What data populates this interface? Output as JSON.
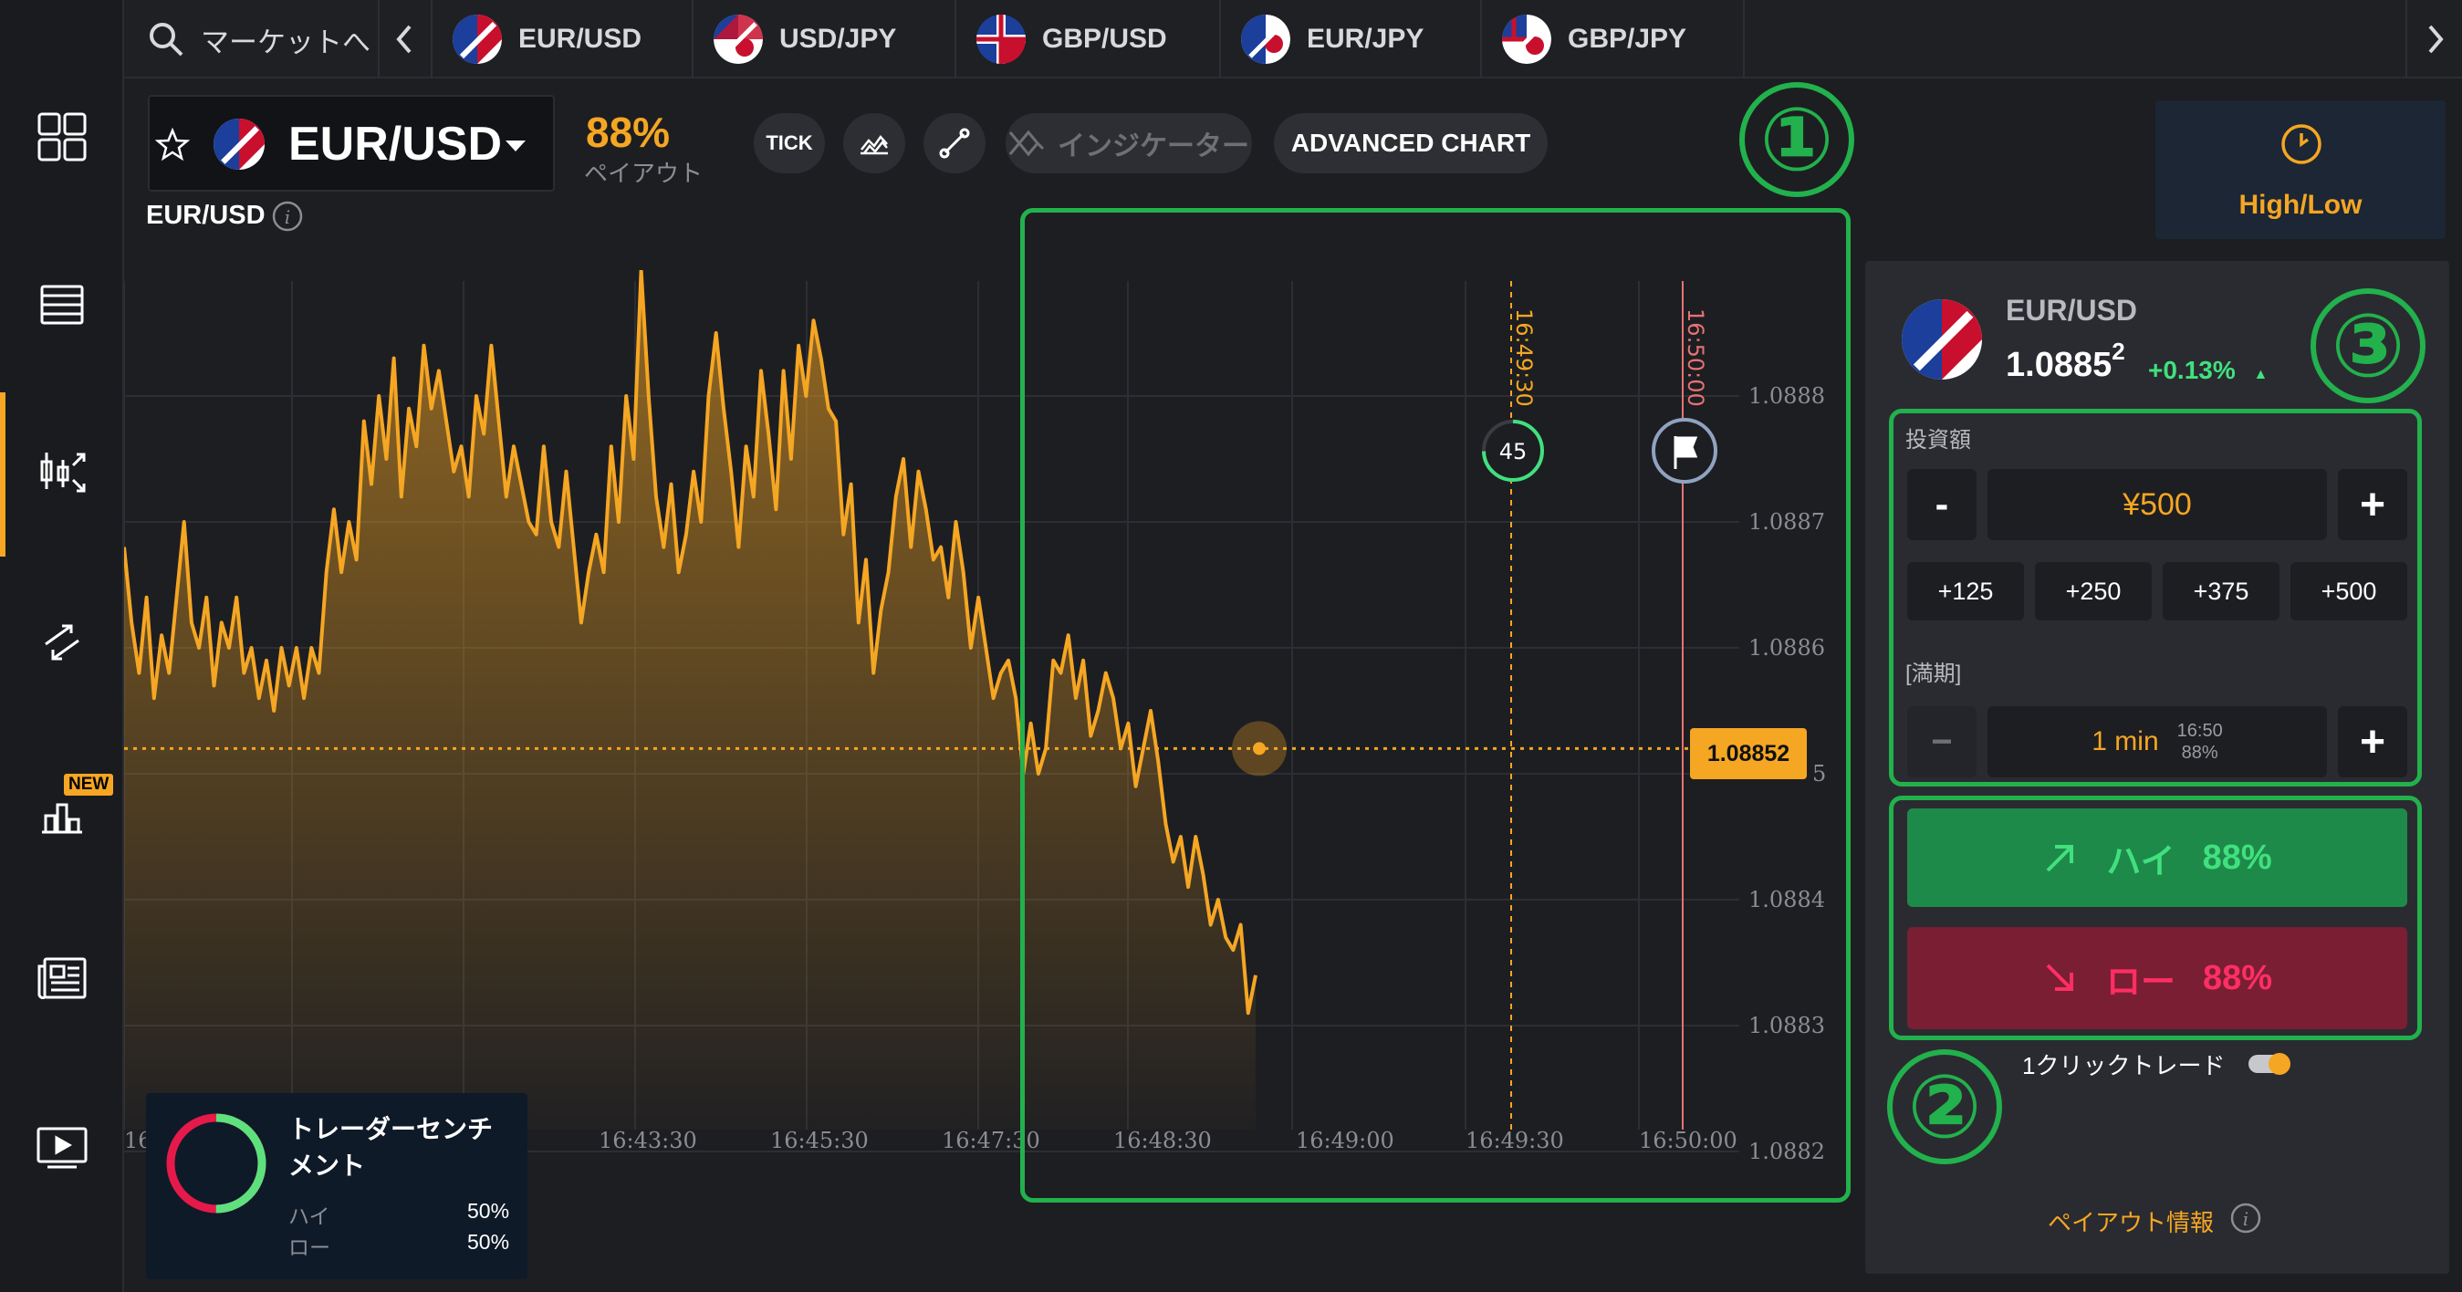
{
  "sidebar": {
    "items": [
      {
        "name": "dashboard-icon"
      },
      {
        "name": "list-icon"
      },
      {
        "name": "trade-chart-icon"
      },
      {
        "name": "transfer-icon"
      },
      {
        "name": "tournament-icon",
        "badge": "NEW"
      },
      {
        "name": "news-icon"
      },
      {
        "name": "video-icon"
      }
    ]
  },
  "topbar": {
    "search_label": "マーケットへ",
    "tabs": [
      "EUR/USD",
      "USD/JPY",
      "GBP/USD",
      "EUR/JPY",
      "GBP/JPY"
    ]
  },
  "toolbar": {
    "asset": "EUR/USD",
    "payout_pct": "88%",
    "payout_label": "ペイアウト",
    "tick_label": "TICK",
    "indicator_label": "インジケーター",
    "advanced_label": "ADVANCED CHART",
    "sub_title": "EUR/USD"
  },
  "mode": {
    "label": "High/Low"
  },
  "annotations": {
    "one": "①",
    "two": "②",
    "three": "③"
  },
  "chart_data": {
    "type": "area",
    "y_ticks": [
      "1.0888",
      "1.0887",
      "1.0886",
      "1.0885",
      "1.0884",
      "1.0883",
      "1.0882"
    ],
    "x_ticks": [
      "16",
      "16:43:30",
      "16:45:30",
      "16:47:30",
      "16:48:30",
      "16:49:00",
      "16:49:30",
      "16:50:00"
    ],
    "current_price": "1.08852",
    "entry_line": "16:49:30",
    "expiry_line": "16:50:00",
    "timer": "45",
    "series": [
      1.08868,
      1.08862,
      1.08858,
      1.08864,
      1.08856,
      1.08861,
      1.08858,
      1.08864,
      1.0887,
      1.08862,
      1.0886,
      1.08864,
      1.08857,
      1.08862,
      1.0886,
      1.08864,
      1.08858,
      1.0886,
      1.08856,
      1.08859,
      1.08855,
      1.0886,
      1.08857,
      1.0886,
      1.08856,
      1.0886,
      1.08858,
      1.08866,
      1.08871,
      1.08866,
      1.0887,
      1.08867,
      1.08878,
      1.08873,
      1.0888,
      1.08875,
      1.08883,
      1.08872,
      1.08879,
      1.08876,
      1.08884,
      1.08879,
      1.08882,
      1.08878,
      1.08874,
      1.08876,
      1.08872,
      1.0888,
      1.08877,
      1.08884,
      1.08878,
      1.08872,
      1.08876,
      1.08873,
      1.0887,
      1.08869,
      1.08876,
      1.0887,
      1.08868,
      1.08874,
      1.08868,
      1.08862,
      1.08866,
      1.08869,
      1.08866,
      1.08876,
      1.0887,
      1.0888,
      1.08875,
      1.0889,
      1.0888,
      1.08872,
      1.08868,
      1.08873,
      1.08866,
      1.08869,
      1.08874,
      1.0887,
      1.0888,
      1.08885,
      1.08879,
      1.08874,
      1.08868,
      1.08876,
      1.08872,
      1.08882,
      1.08877,
      1.08871,
      1.08882,
      1.08875,
      1.08884,
      1.0888,
      1.08886,
      1.08883,
      1.08879,
      1.08878,
      1.08869,
      1.08873,
      1.08862,
      1.08867,
      1.08858,
      1.08863,
      1.08866,
      1.08872,
      1.08875,
      1.08868,
      1.08874,
      1.08871,
      1.08867,
      1.08868,
      1.08864,
      1.0887,
      1.08866,
      1.0886,
      1.08864,
      1.0886,
      1.08856,
      1.08858,
      1.08859,
      1.08856,
      1.0885,
      1.08854,
      1.0885,
      1.08852,
      1.08859,
      1.08858,
      1.08861,
      1.08856,
      1.08859,
      1.08853,
      1.08855,
      1.08858,
      1.08856,
      1.08852,
      1.08854,
      1.08849,
      1.08852,
      1.08855,
      1.08851,
      1.08846,
      1.08843,
      1.08845,
      1.08841,
      1.08845,
      1.08842,
      1.08838,
      1.0884,
      1.08837,
      1.08836,
      1.08838,
      1.08831,
      1.08834
    ]
  },
  "sentiment": {
    "title": "トレーダーセンチメント",
    "high_label": "ハイ",
    "high_pct": "50%",
    "low_label": "ロー",
    "low_pct": "50%",
    "high_value": 50
  },
  "panel": {
    "pair": "EUR/USD",
    "price_main": "1.0885",
    "price_sup": "2",
    "change": "+0.13%",
    "invest_label": "投資額",
    "minus": "-",
    "amount": "¥500",
    "plus": "+",
    "presets": [
      "+125",
      "+250",
      "+375",
      "+500"
    ],
    "expiry_label": "[満期]",
    "expiry_minus": "−",
    "expiry_value": "1 min",
    "expiry_time": "16:50",
    "expiry_pct": "88%",
    "expiry_plus": "+",
    "high_label": "ハイ",
    "high_pct": "88%",
    "low_label": "ロー",
    "low_pct": "88%",
    "one_click_label": "1クリックトレード",
    "payout_info": "ペイアウト情報"
  },
  "colors": {
    "accent": "#f5a623",
    "green": "#22b14c",
    "high_btn": "#1e8a4a",
    "low_btn": "#7a1e34",
    "low_text": "#ff2e63",
    "high_text": "#41e07f"
  }
}
